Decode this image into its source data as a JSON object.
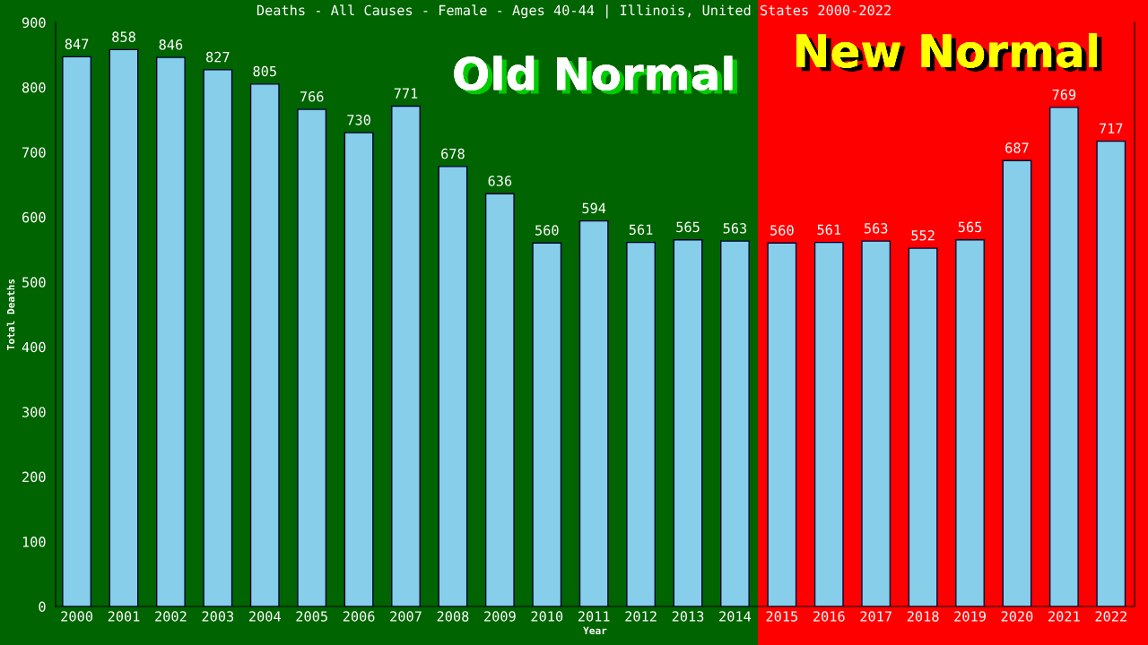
{
  "chart_data": {
    "type": "bar",
    "title": "Deaths - All Causes - Female - Ages 40-44 | Illinois, United States 2000-2022",
    "xlabel": "Year",
    "ylabel": "Total Deaths",
    "categories": [
      "2000",
      "2001",
      "2002",
      "2003",
      "2004",
      "2005",
      "2006",
      "2007",
      "2008",
      "2009",
      "2010",
      "2011",
      "2012",
      "2013",
      "2014",
      "2015",
      "2016",
      "2017",
      "2018",
      "2019",
      "2020",
      "2021",
      "2022"
    ],
    "values": [
      847,
      858,
      846,
      827,
      805,
      766,
      730,
      771,
      678,
      636,
      560,
      594,
      561,
      565,
      563,
      560,
      561,
      563,
      552,
      565,
      687,
      769,
      717
    ],
    "color": "#87ceeb",
    "ylim": [
      0,
      900
    ],
    "yticks": [
      0,
      100,
      200,
      300,
      400,
      500,
      600,
      700,
      800,
      900
    ],
    "data_labels": true,
    "grid": false,
    "bands": [
      {
        "axis": "x",
        "from": "2000",
        "to": "2014",
        "color": "#006400"
      },
      {
        "axis": "x",
        "from": "2015",
        "to": "2022",
        "color": "#ff0000"
      }
    ],
    "annotations": [
      "Old Normal",
      "New Normal"
    ]
  }
}
